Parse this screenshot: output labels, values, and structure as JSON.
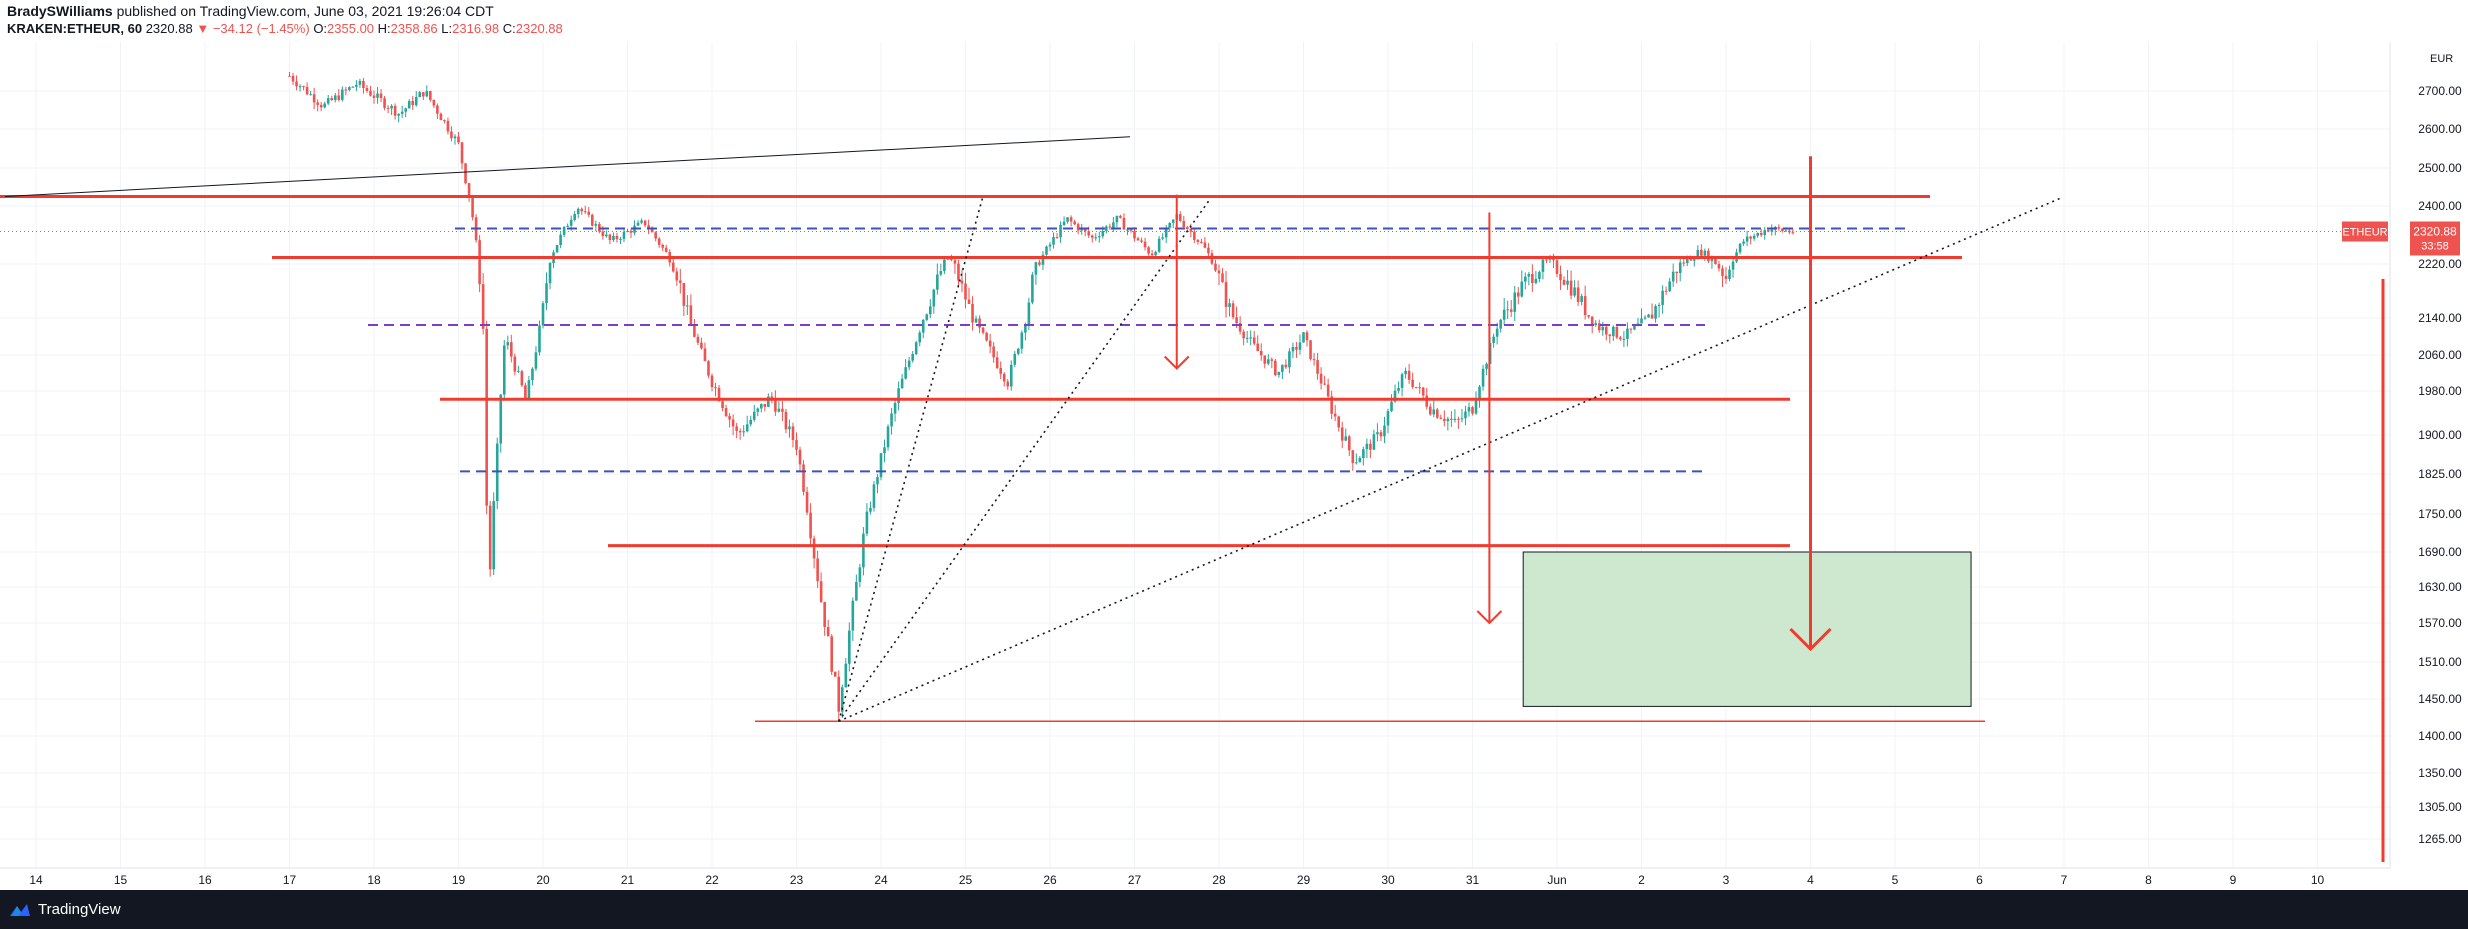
{
  "header": {
    "author": "BradySWilliams",
    "published_text": "published on TradingView.com, June 03, 2021 19:26:04 CDT",
    "symbol": "KRAKEN:ETHEUR, 60",
    "price": "2320.88",
    "change_arrow": "▼",
    "change": "−34.12 (−1.45%)",
    "open_label": "O:",
    "open": "2355.00",
    "high_label": "H:",
    "high": "2358.86",
    "low_label": "L:",
    "low": "2316.98",
    "close_label": "C:",
    "close": "2320.88"
  },
  "footer": {
    "brand": "TradingView"
  },
  "chart_data": {
    "type": "candlestick",
    "currency": "EUR",
    "symbol_tag": "ETHEUR",
    "last_price": "2320.88",
    "countdown": "33:58",
    "colors": {
      "up": "#26a69a",
      "down": "#ef5350",
      "drawing": "#f23b2f",
      "dashed_purple": "#7b3fc6",
      "dashed_blue": "#3f51b5",
      "target_zone": "#c8e6c9"
    },
    "y_ticks": [
      "2700.00",
      "2600.00",
      "2500.00",
      "2400.00",
      "2220.00",
      "2140.00",
      "2060.00",
      "1980.00",
      "1900.00",
      "1825.00",
      "1750.00",
      "1690.00",
      "1630.00",
      "1570.00",
      "1510.00",
      "1450.00",
      "1400.00",
      "1350.00",
      "1305.00",
      "1265.00"
    ],
    "y_tick_values": [
      2700,
      2600,
      2500,
      2400,
      2220,
      2140,
      2060,
      1980,
      1900,
      1825,
      1750,
      1690,
      1630,
      1570,
      1510,
      1450,
      1400,
      1350,
      1305,
      1265
    ],
    "x_ticks": [
      "14",
      "15",
      "16",
      "17",
      "18",
      "19",
      "20",
      "21",
      "22",
      "23",
      "24",
      "25",
      "26",
      "27",
      "28",
      "29",
      "30",
      "31",
      "Jun",
      "2",
      "3",
      "4",
      "5",
      "6",
      "7",
      "8",
      "9",
      "10"
    ],
    "price_path": [
      {
        "day": 17.0,
        "price": 2740
      },
      {
        "day": 17.4,
        "price": 2660
      },
      {
        "day": 17.8,
        "price": 2720
      },
      {
        "day": 18.3,
        "price": 2640
      },
      {
        "day": 18.6,
        "price": 2700
      },
      {
        "day": 19.0,
        "price": 2560
      },
      {
        "day": 19.15,
        "price": 2400
      },
      {
        "day": 19.3,
        "price": 2100
      },
      {
        "day": 19.35,
        "price": 1600
      },
      {
        "day": 19.55,
        "price": 2100
      },
      {
        "day": 19.8,
        "price": 1960
      },
      {
        "day": 20.1,
        "price": 2250
      },
      {
        "day": 20.4,
        "price": 2400
      },
      {
        "day": 20.8,
        "price": 2290
      },
      {
        "day": 21.2,
        "price": 2350
      },
      {
        "day": 21.6,
        "price": 2200
      },
      {
        "day": 22.0,
        "price": 2000
      },
      {
        "day": 22.3,
        "price": 1900
      },
      {
        "day": 22.7,
        "price": 1970
      },
      {
        "day": 23.0,
        "price": 1880
      },
      {
        "day": 23.3,
        "price": 1600
      },
      {
        "day": 23.5,
        "price": 1440
      },
      {
        "day": 23.8,
        "price": 1720
      },
      {
        "day": 24.1,
        "price": 1920
      },
      {
        "day": 24.5,
        "price": 2140
      },
      {
        "day": 24.8,
        "price": 2240
      },
      {
        "day": 25.2,
        "price": 2100
      },
      {
        "day": 25.5,
        "price": 2000
      },
      {
        "day": 25.8,
        "price": 2200
      },
      {
        "day": 26.2,
        "price": 2360
      },
      {
        "day": 26.5,
        "price": 2300
      },
      {
        "day": 26.8,
        "price": 2360
      },
      {
        "day": 27.2,
        "price": 2250
      },
      {
        "day": 27.5,
        "price": 2370
      },
      {
        "day": 27.8,
        "price": 2280
      },
      {
        "day": 28.1,
        "price": 2160
      },
      {
        "day": 28.4,
        "price": 2080
      },
      {
        "day": 28.7,
        "price": 2020
      },
      {
        "day": 29.0,
        "price": 2100
      },
      {
        "day": 29.3,
        "price": 1960
      },
      {
        "day": 29.6,
        "price": 1850
      },
      {
        "day": 29.9,
        "price": 1900
      },
      {
        "day": 30.2,
        "price": 2020
      },
      {
        "day": 30.5,
        "price": 1950
      },
      {
        "day": 30.8,
        "price": 1920
      },
      {
        "day": 31.0,
        "price": 1950
      },
      {
        "day": 31.3,
        "price": 2130
      },
      {
        "day": 31.6,
        "price": 2190
      },
      {
        "day": 31.9,
        "price": 2230
      },
      {
        "day": 32.2,
        "price": 2180
      },
      {
        "day": 32.5,
        "price": 2120
      },
      {
        "day": 32.8,
        "price": 2100
      },
      {
        "day": 33.1,
        "price": 2140
      },
      {
        "day": 33.4,
        "price": 2210
      },
      {
        "day": 33.7,
        "price": 2260
      },
      {
        "day": 34.0,
        "price": 2200
      },
      {
        "day": 34.2,
        "price": 2290
      },
      {
        "day": 34.5,
        "price": 2330
      },
      {
        "day": 34.8,
        "price": 2320
      }
    ],
    "annotations": {
      "resistance_lines": [
        2425,
        2240,
        1965,
        1700,
        1420
      ],
      "dashed_levels": [
        2330,
        2125,
        1830
      ],
      "target_zone": {
        "from_day": 31.6,
        "to_day": 36.9,
        "from_price": 1440,
        "to_price": 1690
      },
      "projection_arrows": [
        {
          "day": 27.5,
          "from": 2430,
          "to": 2030
        },
        {
          "day": 31.2,
          "from": 2380,
          "to": 1570
        },
        {
          "day": 35.0,
          "from": 2530,
          "to": 1530
        }
      ]
    }
  }
}
